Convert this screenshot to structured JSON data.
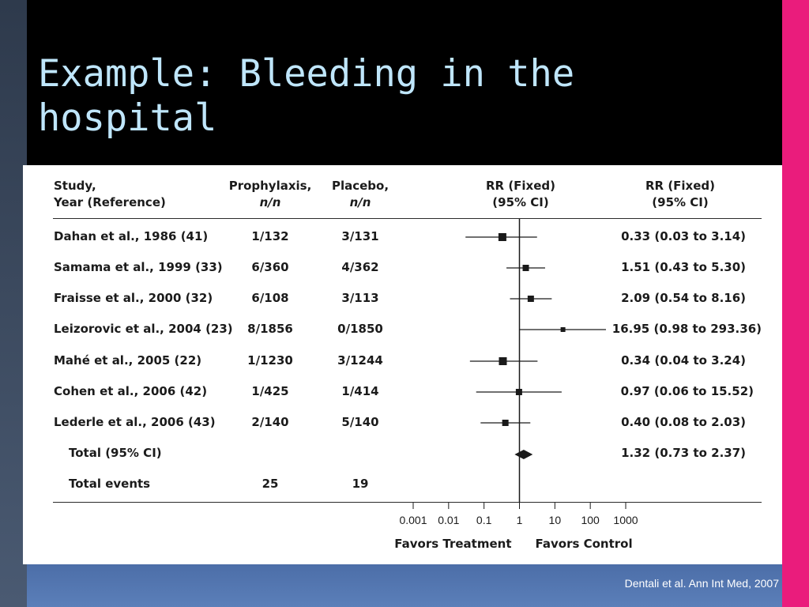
{
  "slide": {
    "title": "Example: Bleeding in the hospital",
    "citation": "Dentali et al. Ann Int Med, 2007"
  },
  "table": {
    "headers": {
      "study_line1": "Study,",
      "study_line2": "Year (Reference)",
      "prophylaxis_line1": "Prophylaxis,",
      "prophylaxis_line2": "n/n",
      "placebo_line1": "Placebo,",
      "placebo_line2": "n/n",
      "plot_line1": "RR (Fixed)",
      "plot_line2": "(95% CI)",
      "rr_line1": "RR (Fixed)",
      "rr_line2": "(95% CI)"
    },
    "rows": [
      {
        "study": "Dahan et al., 1986 (41)",
        "prophylaxis": "1/132",
        "placebo": "3/131",
        "rr_text": "0.33 (0.03 to 3.14)"
      },
      {
        "study": "Samama et al., 1999 (33)",
        "prophylaxis": "6/360",
        "placebo": "4/362",
        "rr_text": "1.51 (0.43 to 5.30)"
      },
      {
        "study": "Fraisse et al., 2000 (32)",
        "prophylaxis": "6/108",
        "placebo": "3/113",
        "rr_text": "2.09 (0.54 to 8.16)"
      },
      {
        "study": "Leizorovic et al., 2004 (23)",
        "prophylaxis": "8/1856",
        "placebo": "0/1850",
        "rr_text": "16.95 (0.98 to 293.36)"
      },
      {
        "study": "Mahé et al., 2005 (22)",
        "prophylaxis": "1/1230",
        "placebo": "3/1244",
        "rr_text": "0.34 (0.04 to 3.24)"
      },
      {
        "study": "Cohen et al., 2006 (42)",
        "prophylaxis": "1/425",
        "placebo": "1/414",
        "rr_text": "0.97 (0.06 to 15.52)"
      },
      {
        "study": "Lederle et al., 2006 (43)",
        "prophylaxis": "2/140",
        "placebo": "5/140",
        "rr_text": "0.40 (0.08 to 2.03)"
      }
    ],
    "total": {
      "label": "Total (95% CI)",
      "rr_text": "1.32 (0.73 to 2.37)"
    },
    "events": {
      "label": "Total events",
      "prophylaxis": "25",
      "placebo": "19"
    }
  },
  "chart_data": {
    "type": "forest",
    "x_scale": "log10",
    "xlim": [
      0.001,
      1000
    ],
    "xticks": [
      0.001,
      0.01,
      0.1,
      1,
      10,
      100,
      1000
    ],
    "xtick_labels": [
      "0.001",
      "0.01",
      "0.1",
      "1",
      "10",
      "100",
      "1000"
    ],
    "reference_line": 1,
    "xlabel_left": "Favors Treatment",
    "xlabel_right": "Favors Control",
    "studies": [
      {
        "name": "Dahan et al., 1986 (41)",
        "rr": 0.33,
        "lower": 0.03,
        "upper": 3.14
      },
      {
        "name": "Samama et al., 1999 (33)",
        "rr": 1.51,
        "lower": 0.43,
        "upper": 5.3
      },
      {
        "name": "Fraisse et al., 2000 (32)",
        "rr": 2.09,
        "lower": 0.54,
        "upper": 8.16
      },
      {
        "name": "Leizorovic et al., 2004 (23)",
        "rr": 16.95,
        "lower": 0.98,
        "upper": 293.36
      },
      {
        "name": "Mahé et al., 2005 (22)",
        "rr": 0.34,
        "lower": 0.04,
        "upper": 3.24
      },
      {
        "name": "Cohen et al., 2006 (42)",
        "rr": 0.97,
        "lower": 0.06,
        "upper": 15.52
      },
      {
        "name": "Lederle et al., 2006 (43)",
        "rr": 0.4,
        "lower": 0.08,
        "upper": 2.03
      }
    ],
    "pooled": {
      "rr": 1.32,
      "lower": 0.73,
      "upper": 2.37
    }
  }
}
